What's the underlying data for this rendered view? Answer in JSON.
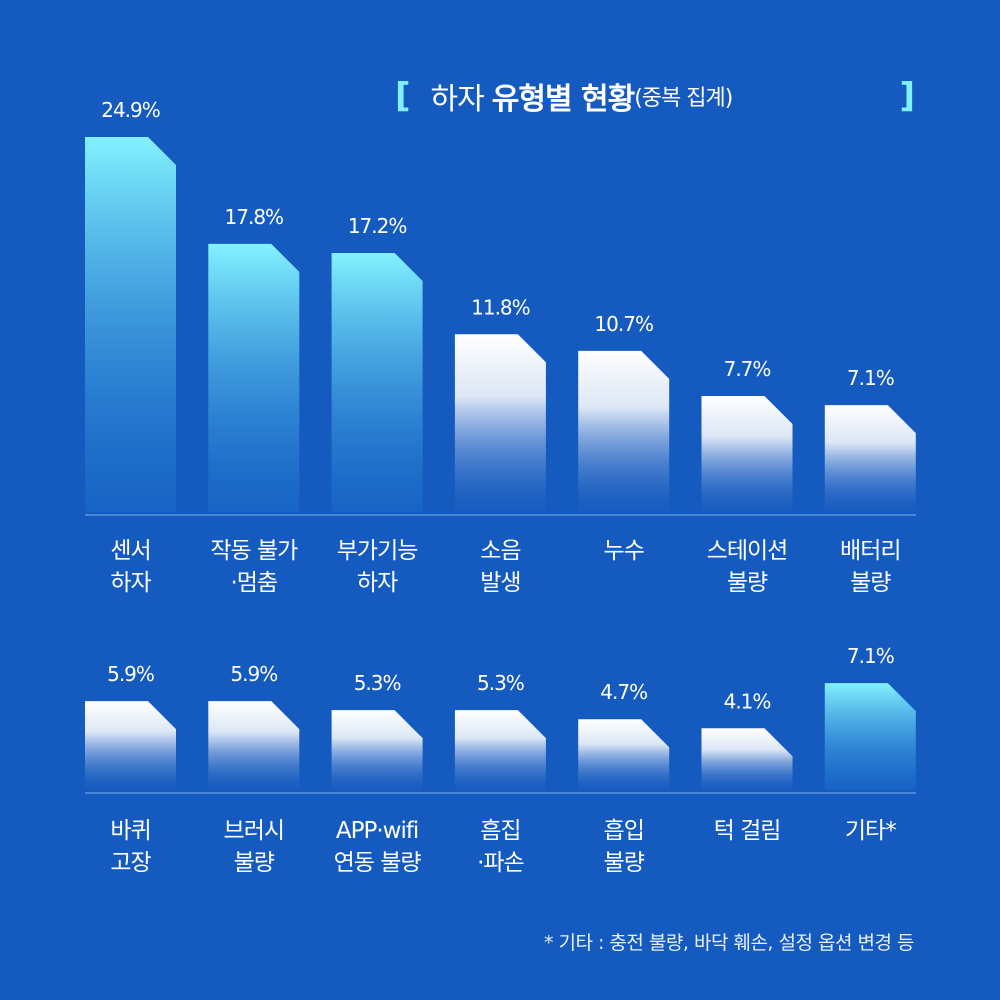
{
  "header": {
    "bracket_open": "[",
    "title_plain": "하자",
    "title_bold": "유형별 현황",
    "title_sub": "(중복 집계)",
    "bracket_close": "]"
  },
  "footnote": "* 기타 : 충전 불량, 바닥 훼손, 설정 옵션 변경 등",
  "colors": {
    "background": "#155bbf",
    "accent_top": "#83f2ff",
    "accent_bottom": "#1f7dd6",
    "neutral_top": "#ffffff",
    "neutral_bottom": "#2a67c8",
    "baseline": "#6ea3e6"
  },
  "chart_data": [
    {
      "type": "bar",
      "title": "하자 유형별 현황 (중복 집계)",
      "ylabel": "",
      "xlabel": "",
      "unit": "%",
      "ylim": [
        0,
        24.9
      ],
      "grid": false,
      "categories": [
        [
          "센서",
          "하자"
        ],
        [
          "작동 불가",
          "·멈춤"
        ],
        [
          "부가기능",
          "하자"
        ],
        [
          "소음",
          "발생"
        ],
        [
          "누수"
        ],
        [
          "스테이션",
          "불량"
        ],
        [
          "배터리",
          "불량"
        ]
      ],
      "values": [
        24.9,
        17.8,
        17.2,
        11.8,
        10.7,
        7.7,
        7.1
      ],
      "labels": [
        "24.9%",
        "17.8%",
        "17.2%",
        "11.8%",
        "10.7%",
        "7.7%",
        "7.1%"
      ],
      "highlight": [
        true,
        true,
        true,
        false,
        false,
        false,
        false
      ]
    },
    {
      "type": "bar",
      "title": "",
      "ylabel": "",
      "xlabel": "",
      "unit": "%",
      "ylim": [
        0,
        24.9
      ],
      "grid": false,
      "categories": [
        [
          "바퀴",
          "고장"
        ],
        [
          "브러시",
          "불량"
        ],
        [
          "APP·wifi",
          "연동 불량"
        ],
        [
          "흠집",
          "·파손"
        ],
        [
          "흡입",
          "불량"
        ],
        [
          "턱 걸림"
        ],
        [
          "기타*"
        ]
      ],
      "values": [
        5.9,
        5.9,
        5.3,
        5.3,
        4.7,
        4.1,
        7.1
      ],
      "labels": [
        "5.9%",
        "5.9%",
        "5.3%",
        "5.3%",
        "4.7%",
        "4.1%",
        "7.1%"
      ],
      "highlight": [
        false,
        false,
        false,
        false,
        false,
        false,
        true
      ]
    }
  ]
}
